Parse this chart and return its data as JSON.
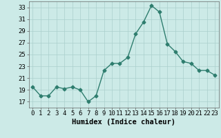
{
  "x": [
    0,
    1,
    2,
    3,
    4,
    5,
    6,
    7,
    8,
    9,
    10,
    11,
    12,
    13,
    14,
    15,
    16,
    17,
    18,
    19,
    20,
    21,
    22,
    23
  ],
  "y": [
    19.5,
    18.0,
    18.0,
    19.5,
    19.2,
    19.5,
    19.0,
    17.0,
    18.0,
    22.3,
    23.5,
    23.5,
    24.5,
    28.5,
    30.5,
    33.3,
    32.2,
    26.8,
    25.5,
    23.8,
    23.5,
    22.3,
    22.3,
    21.5
  ],
  "line_color": "#2e7d6e",
  "marker": "D",
  "marker_size": 2.5,
  "bg_color": "#cceae7",
  "grid_color": "#aacfcc",
  "xlabel": "Humidex (Indice chaleur)",
  "ylim": [
    16,
    34
  ],
  "xlim": [
    -0.5,
    23.5
  ],
  "yticks": [
    17,
    19,
    21,
    23,
    25,
    27,
    29,
    31,
    33
  ],
  "xticks": [
    0,
    1,
    2,
    3,
    4,
    5,
    6,
    7,
    8,
    9,
    10,
    11,
    12,
    13,
    14,
    15,
    16,
    17,
    18,
    19,
    20,
    21,
    22,
    23
  ],
  "xlabel_fontsize": 7.5,
  "tick_fontsize": 6.5,
  "line_width": 1.0
}
